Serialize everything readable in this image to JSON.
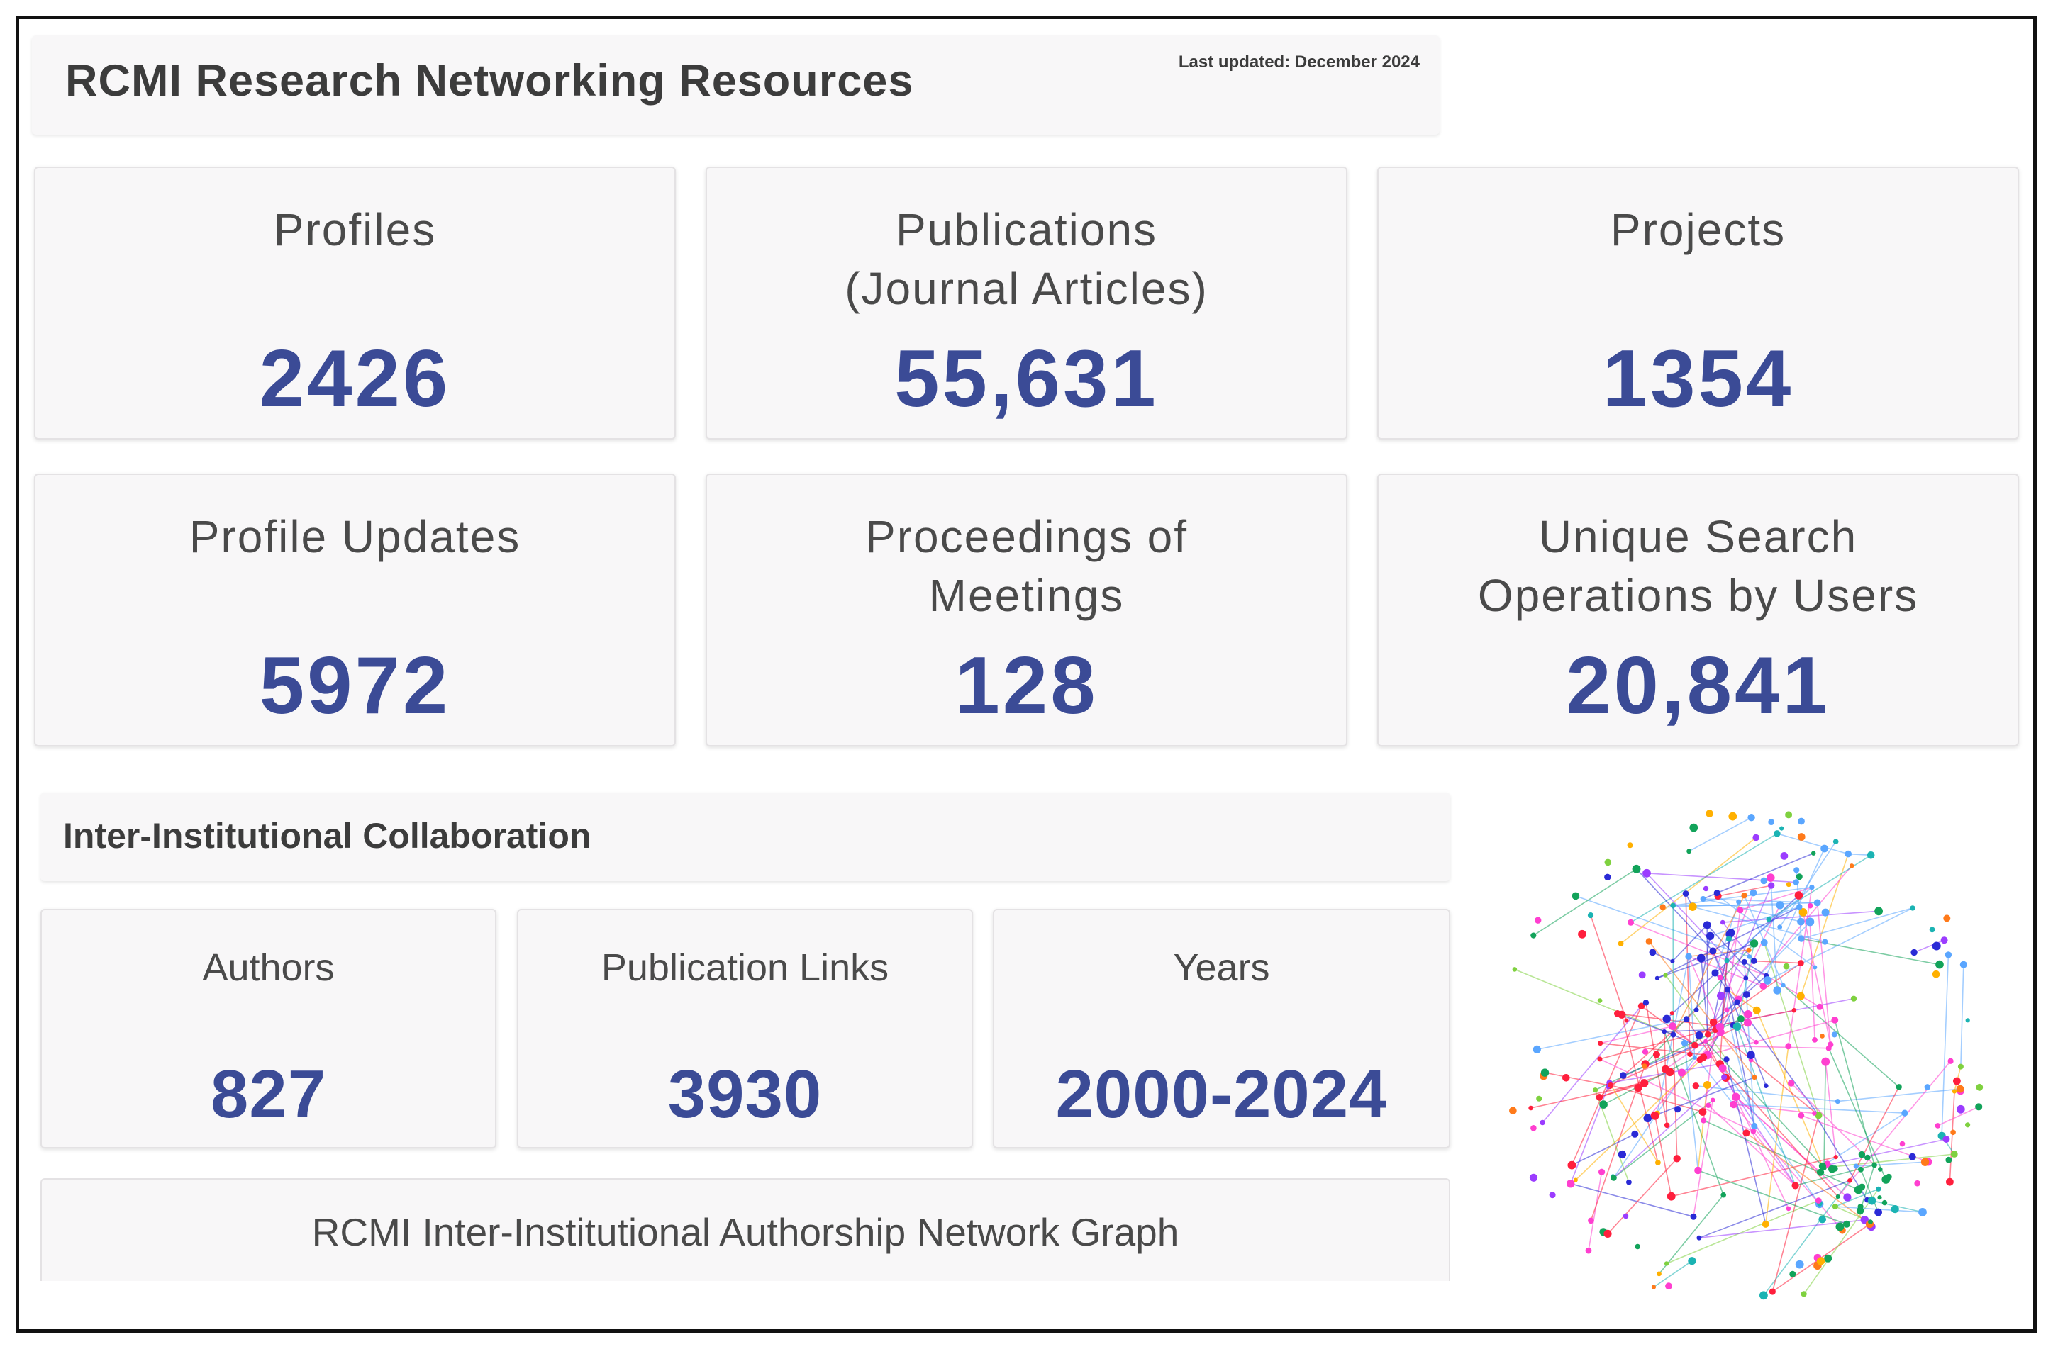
{
  "header": {
    "title": "RCMI Research Networking Resources",
    "last_updated": "Last updated: December 2024"
  },
  "stats": [
    {
      "label_lines": [
        "Profiles"
      ],
      "value": "2426"
    },
    {
      "label_lines": [
        "Publications",
        "(Journal Articles)"
      ],
      "value": "55,631"
    },
    {
      "label_lines": [
        "Projects"
      ],
      "value": "1354"
    },
    {
      "label_lines": [
        "Profile Updates"
      ],
      "value": "5972"
    },
    {
      "label_lines": [
        "Proceedings of",
        "Meetings"
      ],
      "value": "128"
    },
    {
      "label_lines": [
        "Unique Search",
        "Operations by Users"
      ],
      "value": "20,841"
    }
  ],
  "collaboration": {
    "title": "Inter-Institutional Collaboration",
    "stats": [
      {
        "label": "Authors",
        "value": "827"
      },
      {
        "label": "Publication Links",
        "value": "3930"
      },
      {
        "label": "Years",
        "value": "2000-2024"
      }
    ],
    "graph_label": "RCMI Inter-Institutional Authorship Network Graph"
  },
  "network_colors": [
    "#ff1f3d",
    "#2a2ad6",
    "#ff3fd0",
    "#5aa6ff",
    "#12a35a",
    "#ffb000",
    "#9b3cff",
    "#1bb3b3",
    "#ff7a1a",
    "#7fd13f"
  ]
}
